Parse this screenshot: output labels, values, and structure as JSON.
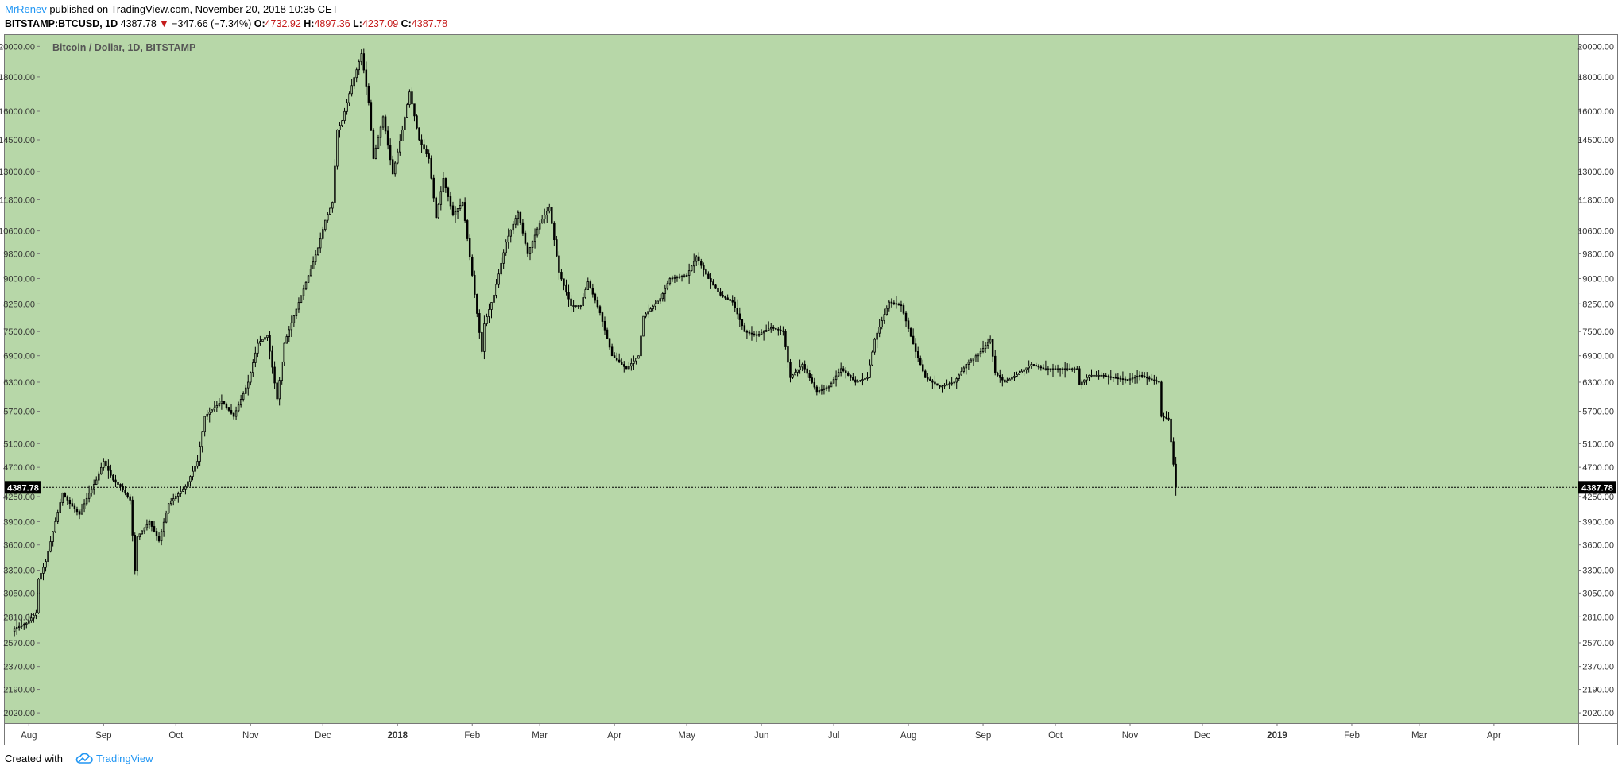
{
  "header": {
    "author": "MrRenev",
    "published_text": " published on TradingView.com, November 20, 2018 10:35 CET",
    "symbol": "BITSTAMP:BTCUSD, 1D",
    "last": "4387.78",
    "change_arrow": "▼",
    "change": "−347.66 (−7.34%)",
    "o_label": "O:",
    "o_value": "4732.92",
    "h_label": "H:",
    "h_value": "4897.36",
    "l_label": "L:",
    "l_value": "4237.09",
    "c_label": "C:",
    "c_value": "4387.78"
  },
  "footer": {
    "created_with": "Created with",
    "brand": "TradingView",
    "logo_icon": "tradingview-cloud-icon"
  },
  "colors": {
    "background": "#b7d7a8",
    "candle": "#000000",
    "frame": "#777777",
    "price_tag_bg": "#000000",
    "price_tag_text": "#ffffff"
  },
  "chart_data": {
    "type": "candlestick",
    "title": "Bitcoin / Dollar, 1D, BITSTAMP",
    "scale": "log",
    "ylim": [
      1950,
      20800
    ],
    "y_ticks": [
      "2020.00",
      "2190.00",
      "2370.00",
      "2570.00",
      "2810.00",
      "3050.00",
      "3300.00",
      "3600.00",
      "3900.00",
      "4250.00",
      "4700.00",
      "5100.00",
      "5700.00",
      "6300.00",
      "6900.00",
      "7500.00",
      "8250.00",
      "9000.00",
      "9800.00",
      "10600.00",
      "11800.00",
      "13000.00",
      "14500.00",
      "16000.00",
      "18000.00",
      "20000.00"
    ],
    "x_range": [
      "2017-07-22",
      "2019-05-06"
    ],
    "x_ticks": [
      {
        "date": "2017-08-01",
        "label": "Aug"
      },
      {
        "date": "2017-09-01",
        "label": "Sep"
      },
      {
        "date": "2017-10-01",
        "label": "Oct"
      },
      {
        "date": "2017-11-01",
        "label": "Nov"
      },
      {
        "date": "2017-12-01",
        "label": "Dec"
      },
      {
        "date": "2018-01-01",
        "label": "2018",
        "bold": true
      },
      {
        "date": "2018-02-01",
        "label": "Feb"
      },
      {
        "date": "2018-03-01",
        "label": "Mar"
      },
      {
        "date": "2018-04-01",
        "label": "Apr"
      },
      {
        "date": "2018-05-01",
        "label": "May"
      },
      {
        "date": "2018-06-01",
        "label": "Jun"
      },
      {
        "date": "2018-07-01",
        "label": "Jul"
      },
      {
        "date": "2018-08-01",
        "label": "Aug"
      },
      {
        "date": "2018-09-01",
        "label": "Sep"
      },
      {
        "date": "2018-10-01",
        "label": "Oct"
      },
      {
        "date": "2018-11-01",
        "label": "Nov"
      },
      {
        "date": "2018-12-01",
        "label": "Dec"
      },
      {
        "date": "2019-01-01",
        "label": "2019",
        "bold": true
      },
      {
        "date": "2019-02-01",
        "label": "Feb"
      },
      {
        "date": "2019-03-01",
        "label": "Mar"
      },
      {
        "date": "2019-04-01",
        "label": "Apr"
      }
    ],
    "current_price": 4387.78,
    "current_price_label": "4387.78",
    "close_series": [
      {
        "date": "2017-07-26",
        "close": 2700
      },
      {
        "date": "2017-07-31",
        "close": 2750
      },
      {
        "date": "2017-08-04",
        "close": 2850
      },
      {
        "date": "2017-08-05",
        "close": 3200
      },
      {
        "date": "2017-08-08",
        "close": 3400
      },
      {
        "date": "2017-08-12",
        "close": 3900
      },
      {
        "date": "2017-08-15",
        "close": 4300
      },
      {
        "date": "2017-08-18",
        "close": 4150
      },
      {
        "date": "2017-08-22",
        "close": 4000
      },
      {
        "date": "2017-08-26",
        "close": 4300
      },
      {
        "date": "2017-08-29",
        "close": 4500
      },
      {
        "date": "2017-09-01",
        "close": 4800
      },
      {
        "date": "2017-09-05",
        "close": 4500
      },
      {
        "date": "2017-09-08",
        "close": 4400
      },
      {
        "date": "2017-09-12",
        "close": 4200
      },
      {
        "date": "2017-09-14",
        "close": 3300
      },
      {
        "date": "2017-09-15",
        "close": 3700
      },
      {
        "date": "2017-09-20",
        "close": 3900
      },
      {
        "date": "2017-09-24",
        "close": 3650
      },
      {
        "date": "2017-09-28",
        "close": 4150
      },
      {
        "date": "2017-10-05",
        "close": 4400
      },
      {
        "date": "2017-10-10",
        "close": 4800
      },
      {
        "date": "2017-10-13",
        "close": 5600
      },
      {
        "date": "2017-10-20",
        "close": 5900
      },
      {
        "date": "2017-10-25",
        "close": 5600
      },
      {
        "date": "2017-10-31",
        "close": 6300
      },
      {
        "date": "2017-11-04",
        "close": 7200
      },
      {
        "date": "2017-11-08",
        "close": 7400
      },
      {
        "date": "2017-11-12",
        "close": 5950
      },
      {
        "date": "2017-11-15",
        "close": 7200
      },
      {
        "date": "2017-11-20",
        "close": 8100
      },
      {
        "date": "2017-11-26",
        "close": 9300
      },
      {
        "date": "2017-11-29",
        "close": 10000
      },
      {
        "date": "2017-12-02",
        "close": 11000
      },
      {
        "date": "2017-12-05",
        "close": 11700
      },
      {
        "date": "2017-12-07",
        "close": 15000
      },
      {
        "date": "2017-12-09",
        "close": 15500
      },
      {
        "date": "2017-12-12",
        "close": 17000
      },
      {
        "date": "2017-12-17",
        "close": 19500
      },
      {
        "date": "2017-12-20",
        "close": 16500
      },
      {
        "date": "2017-12-22",
        "close": 13600
      },
      {
        "date": "2017-12-26",
        "close": 15700
      },
      {
        "date": "2017-12-30",
        "close": 12900
      },
      {
        "date": "2018-01-03",
        "close": 15000
      },
      {
        "date": "2018-01-06",
        "close": 17100
      },
      {
        "date": "2018-01-10",
        "close": 14500
      },
      {
        "date": "2018-01-14",
        "close": 13600
      },
      {
        "date": "2018-01-17",
        "close": 11100
      },
      {
        "date": "2018-01-20",
        "close": 12700
      },
      {
        "date": "2018-01-24",
        "close": 11200
      },
      {
        "date": "2018-01-28",
        "close": 11700
      },
      {
        "date": "2018-02-01",
        "close": 9100
      },
      {
        "date": "2018-02-05",
        "close": 7000
      },
      {
        "date": "2018-02-06",
        "close": 7700
      },
      {
        "date": "2018-02-10",
        "close": 8500
      },
      {
        "date": "2018-02-15",
        "close": 10200
      },
      {
        "date": "2018-02-20",
        "close": 11300
      },
      {
        "date": "2018-02-24",
        "close": 9800
      },
      {
        "date": "2018-03-01",
        "close": 10900
      },
      {
        "date": "2018-03-05",
        "close": 11500
      },
      {
        "date": "2018-03-09",
        "close": 9200
      },
      {
        "date": "2018-03-14",
        "close": 8200
      },
      {
        "date": "2018-03-18",
        "close": 8200
      },
      {
        "date": "2018-03-21",
        "close": 8900
      },
      {
        "date": "2018-03-26",
        "close": 8000
      },
      {
        "date": "2018-03-31",
        "close": 6900
      },
      {
        "date": "2018-04-06",
        "close": 6600
      },
      {
        "date": "2018-04-11",
        "close": 6900
      },
      {
        "date": "2018-04-13",
        "close": 7900
      },
      {
        "date": "2018-04-20",
        "close": 8400
      },
      {
        "date": "2018-04-24",
        "close": 9000
      },
      {
        "date": "2018-05-01",
        "close": 9100
      },
      {
        "date": "2018-05-05",
        "close": 9700
      },
      {
        "date": "2018-05-10",
        "close": 9000
      },
      {
        "date": "2018-05-15",
        "close": 8500
      },
      {
        "date": "2018-05-20",
        "close": 8300
      },
      {
        "date": "2018-05-25",
        "close": 7500
      },
      {
        "date": "2018-05-30",
        "close": 7400
      },
      {
        "date": "2018-06-05",
        "close": 7600
      },
      {
        "date": "2018-06-10",
        "close": 7500
      },
      {
        "date": "2018-06-13",
        "close": 6400
      },
      {
        "date": "2018-06-18",
        "close": 6700
      },
      {
        "date": "2018-06-24",
        "close": 6100
      },
      {
        "date": "2018-06-29",
        "close": 6200
      },
      {
        "date": "2018-07-04",
        "close": 6600
      },
      {
        "date": "2018-07-10",
        "close": 6300
      },
      {
        "date": "2018-07-15",
        "close": 6400
      },
      {
        "date": "2018-07-18",
        "close": 7300
      },
      {
        "date": "2018-07-24",
        "close": 8300
      },
      {
        "date": "2018-07-29",
        "close": 8200
      },
      {
        "date": "2018-08-04",
        "close": 7000
      },
      {
        "date": "2018-08-08",
        "close": 6400
      },
      {
        "date": "2018-08-14",
        "close": 6200
      },
      {
        "date": "2018-08-20",
        "close": 6300
      },
      {
        "date": "2018-08-25",
        "close": 6700
      },
      {
        "date": "2018-08-31",
        "close": 7000
      },
      {
        "date": "2018-09-04",
        "close": 7300
      },
      {
        "date": "2018-09-06",
        "close": 6500
      },
      {
        "date": "2018-09-10",
        "close": 6300
      },
      {
        "date": "2018-09-16",
        "close": 6500
      },
      {
        "date": "2018-09-21",
        "close": 6700
      },
      {
        "date": "2018-09-26",
        "close": 6600
      },
      {
        "date": "2018-09-30",
        "close": 6600
      },
      {
        "date": "2018-10-05",
        "close": 6600
      },
      {
        "date": "2018-10-10",
        "close": 6600
      },
      {
        "date": "2018-10-11",
        "close": 6250
      },
      {
        "date": "2018-10-15",
        "close": 6450
      },
      {
        "date": "2018-10-20",
        "close": 6450
      },
      {
        "date": "2018-10-25",
        "close": 6400
      },
      {
        "date": "2018-10-31",
        "close": 6350
      },
      {
        "date": "2018-11-05",
        "close": 6450
      },
      {
        "date": "2018-11-10",
        "close": 6350
      },
      {
        "date": "2018-11-13",
        "close": 6300
      },
      {
        "date": "2018-11-14",
        "close": 5600
      },
      {
        "date": "2018-11-17",
        "close": 5550
      },
      {
        "date": "2018-11-19",
        "close": 4750
      },
      {
        "date": "2018-11-20",
        "close": 4387.78
      }
    ]
  }
}
